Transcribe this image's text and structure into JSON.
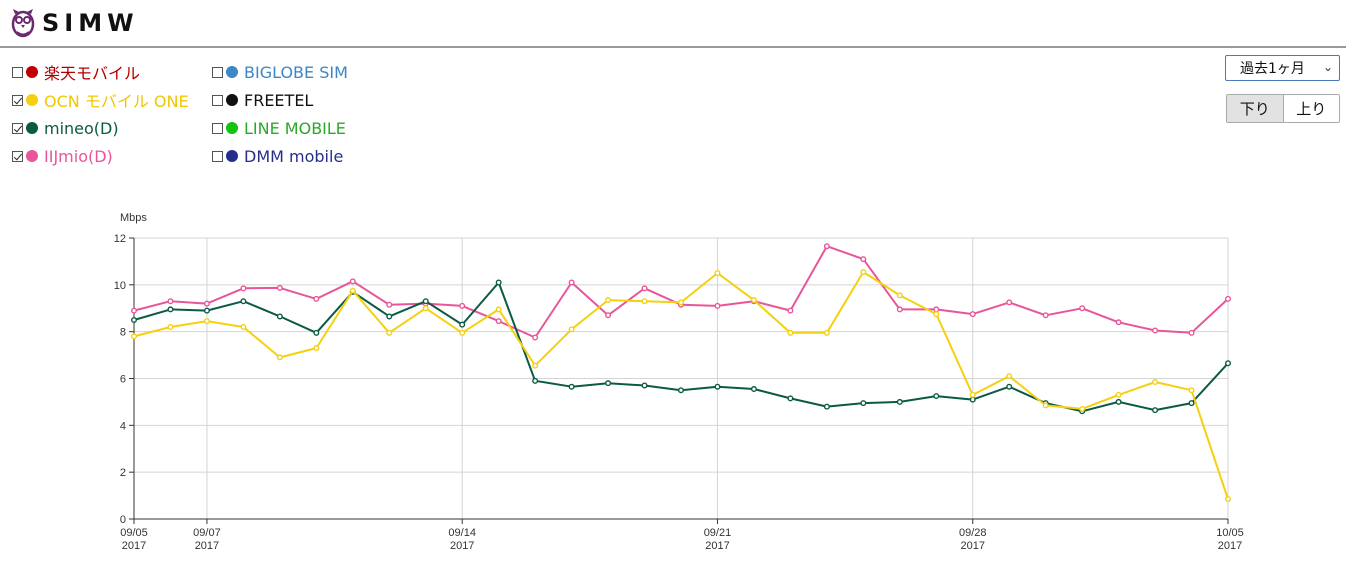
{
  "app": {
    "logo_text": "SIMW"
  },
  "carriers": [
    {
      "label": "楽天モバイル",
      "color": "#c00000",
      "checked": false
    },
    {
      "label": "OCN モバイル ONE",
      "color": "#f5d010",
      "checked": true
    },
    {
      "label": "mineo(D)",
      "color": "#0b5a45",
      "checked": true
    },
    {
      "label": "IIJmio(D)",
      "color": "#e9559a",
      "checked": true
    },
    {
      "label": "BIGLOBE SIM",
      "color": "#3c86c9",
      "checked": false
    },
    {
      "label": "FREETEL",
      "color": "#111111",
      "checked": false
    },
    {
      "label": "LINE MOBILE",
      "color": "#15c20f",
      "checked": false
    },
    {
      "label": "DMM mobile",
      "color": "#262e8c",
      "checked": false
    }
  ],
  "label_colors": [
    "#b00000",
    "#f0c800",
    "#0b5a45",
    "#e9559a",
    "#3c86c9",
    "#111111",
    "#2aa82a",
    "#262e8c"
  ],
  "controls": {
    "period": "過去1ヶ月",
    "direction": {
      "down": "下り",
      "up": "上り",
      "active": "down"
    }
  },
  "chart_data": {
    "type": "line",
    "ylabel": "Mbps",
    "ylim": [
      0,
      12
    ],
    "yticks": [
      0,
      2,
      4,
      6,
      8,
      10,
      12
    ],
    "x": [
      "09/05",
      "09/06",
      "09/07",
      "09/08",
      "09/09",
      "09/10",
      "09/11",
      "09/12",
      "09/13",
      "09/14",
      "09/15",
      "09/16",
      "09/17",
      "09/18",
      "09/19",
      "09/20",
      "09/21",
      "09/22",
      "09/23",
      "09/24",
      "09/25",
      "09/26",
      "09/27",
      "09/28",
      "09/29",
      "09/30",
      "10/01",
      "10/02",
      "10/03",
      "10/04",
      "10/05"
    ],
    "xticks": [
      {
        "label": "09/05",
        "year": "2017"
      },
      {
        "label": "09/07",
        "year": "2017"
      },
      {
        "label": "09/14",
        "year": "2017"
      },
      {
        "label": "09/21",
        "year": "2017"
      },
      {
        "label": "09/28",
        "year": "2017"
      },
      {
        "label": "10/05",
        "year": "2017"
      }
    ],
    "grid": true,
    "series": [
      {
        "name": "IIJmio(D)",
        "color": "#e9559a",
        "values": [
          8.9,
          9.3,
          9.2,
          9.85,
          9.87,
          9.4,
          10.15,
          9.15,
          9.2,
          9.1,
          8.45,
          7.75,
          10.1,
          8.7,
          9.85,
          9.15,
          9.1,
          9.3,
          8.9,
          11.65,
          11.1,
          8.95,
          8.95,
          8.75,
          9.25,
          8.7,
          9.0,
          8.4,
          8.05,
          7.95,
          9.4
        ]
      },
      {
        "name": "mineo(D)",
        "color": "#0b5a45",
        "values": [
          8.5,
          8.95,
          8.9,
          9.3,
          8.65,
          7.95,
          9.7,
          8.65,
          9.3,
          8.3,
          10.1,
          5.9,
          5.65,
          5.8,
          5.7,
          5.5,
          5.65,
          5.55,
          5.15,
          4.8,
          4.95,
          5.0,
          5.25,
          5.1,
          5.65,
          4.95,
          4.6,
          5.0,
          4.65,
          4.95,
          6.65
        ]
      },
      {
        "name": "OCN モバイル ONE",
        "color": "#f5d010",
        "values": [
          7.8,
          8.2,
          8.45,
          8.2,
          6.9,
          7.3,
          9.75,
          7.95,
          9.0,
          7.95,
          8.95,
          6.55,
          8.1,
          9.35,
          9.3,
          9.25,
          10.5,
          9.35,
          7.95,
          7.95,
          10.55,
          9.55,
          8.75,
          5.3,
          6.1,
          4.85,
          4.7,
          5.3,
          5.85,
          5.5,
          0.85
        ]
      }
    ]
  }
}
